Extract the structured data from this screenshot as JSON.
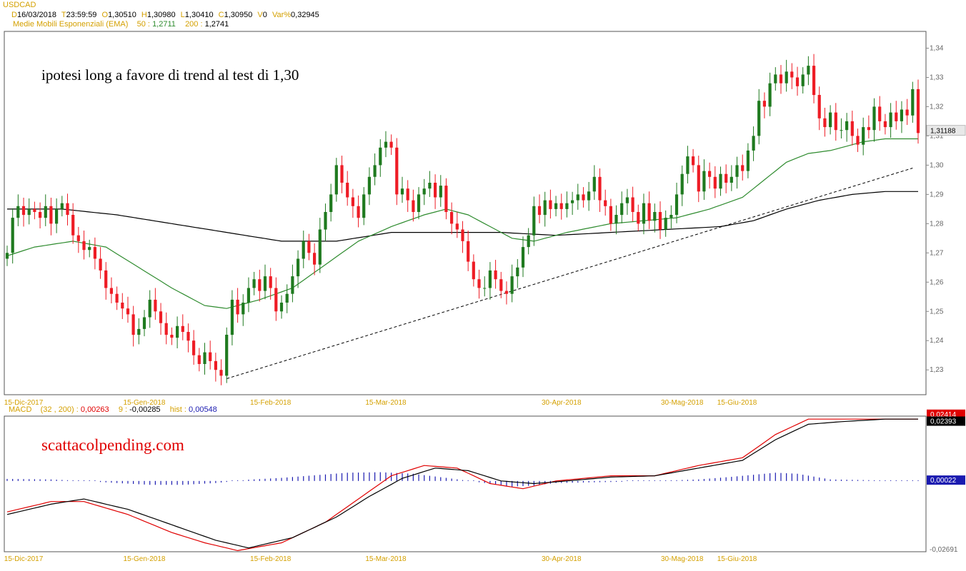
{
  "header": {
    "symbol": "USDCAD",
    "date_key": "D",
    "date": "16/03/2018",
    "time_key": "T",
    "time": "23:59:59",
    "open_key": "O",
    "open": "1,30510",
    "high_key": "H",
    "high": "1,30980",
    "low_key": "L",
    "low": "1,30410",
    "close_key": "C",
    "close": "1,30950",
    "vol_key": "V",
    "vol": "0",
    "var_key": "Var%",
    "var": "0,32945",
    "ema_label": "Medie Mobili Esponenziali (EMA)",
    "ema50_key": "50 :",
    "ema50": "1,2711",
    "ema200_key": "200 :",
    "ema200": "1,2741"
  },
  "macd_header": {
    "label": "MACD",
    "params": "(32 , 200) :",
    "macd_value": "0,00263",
    "signal_key": "9 :",
    "signal_value": "-0,00285",
    "hist_key": "hist :",
    "hist_value": "0,00548"
  },
  "annotations": {
    "main": "ipotesi long a favore di trend al test di 1,30",
    "site": "scattacolpending.com"
  },
  "colors": {
    "up": "#1f7a1f",
    "down": "#ee1c25",
    "ema50": "#2e8b2e",
    "ema200": "#000000",
    "macd": "#000000",
    "signal": "#e00000",
    "hist": "#1a1ab0",
    "axis_label": "#d4a000"
  },
  "chart_data": [
    {
      "type": "candlestick",
      "title": "USDCAD",
      "ylim": [
        1.222,
        1.345
      ],
      "yticks": [
        "1,23",
        "1,24",
        "1,25",
        "1,26",
        "1,27",
        "1,28",
        "1,29",
        "1,30",
        "1,31",
        "1,32",
        "1,33",
        "1,34"
      ],
      "ytick_values": [
        1.23,
        1.24,
        1.25,
        1.26,
        1.27,
        1.28,
        1.29,
        1.3,
        1.31,
        1.32,
        1.33,
        1.34
      ],
      "current_price": "1,31188",
      "current_price_value": 1.3119,
      "xticks": [
        {
          "label": "15-Dic-2017",
          "bar": 3
        },
        {
          "label": "15-Gen-2018",
          "bar": 25
        },
        {
          "label": "15-Feb-2018",
          "bar": 48
        },
        {
          "label": "15-Mar-2018",
          "bar": 69
        },
        {
          "label": "30-Apr-2018",
          "bar": 101
        },
        {
          "label": "30-Mag-2018",
          "bar": 123
        },
        {
          "label": "15-Giu-2018",
          "bar": 133
        }
      ],
      "closes": [
        1.27,
        1.282,
        1.286,
        1.283,
        1.285,
        1.284,
        1.282,
        1.286,
        1.28,
        1.285,
        1.287,
        1.283,
        1.276,
        1.274,
        1.271,
        1.272,
        1.268,
        1.264,
        1.258,
        1.256,
        1.253,
        1.251,
        1.249,
        1.242,
        1.244,
        1.248,
        1.254,
        1.25,
        1.246,
        1.242,
        1.241,
        1.245,
        1.243,
        1.24,
        1.235,
        1.232,
        1.236,
        1.233,
        1.23,
        1.228,
        1.242,
        1.254,
        1.249,
        1.253,
        1.258,
        1.261,
        1.257,
        1.262,
        1.258,
        1.25,
        1.253,
        1.256,
        1.262,
        1.268,
        1.274,
        1.27,
        1.266,
        1.278,
        1.284,
        1.29,
        1.3,
        1.294,
        1.289,
        1.286,
        1.282,
        1.29,
        1.296,
        1.3,
        1.306,
        1.308,
        1.306,
        1.29,
        1.292,
        1.288,
        1.284,
        1.29,
        1.292,
        1.294,
        1.289,
        1.293,
        1.284,
        1.28,
        1.278,
        1.274,
        1.267,
        1.261,
        1.258,
        1.258,
        1.264,
        1.261,
        1.257,
        1.256,
        1.262,
        1.265,
        1.272,
        1.276,
        1.286,
        1.283,
        1.288,
        1.285,
        1.287,
        1.285,
        1.287,
        1.288,
        1.29,
        1.288,
        1.291,
        1.296,
        1.288,
        1.286,
        1.28,
        1.283,
        1.287,
        1.289,
        1.284,
        1.28,
        1.287,
        1.281,
        1.284,
        1.278,
        1.282,
        1.283,
        1.29,
        1.297,
        1.303,
        1.3,
        1.291,
        1.298,
        1.296,
        1.292,
        1.297,
        1.294,
        1.296,
        1.3,
        1.298,
        1.305,
        1.31,
        1.322,
        1.32,
        1.328,
        1.331,
        1.328,
        1.332,
        1.33,
        1.327,
        1.331,
        1.334,
        1.324,
        1.316,
        1.313,
        1.318,
        1.312,
        1.312,
        1.315,
        1.31,
        1.307,
        1.313,
        1.312,
        1.32,
        1.315,
        1.313,
        1.318,
        1.315,
        1.319,
        1.317,
        1.326,
        1.311
      ],
      "ema50_anchors": [
        [
          0,
          1.269
        ],
        [
          5,
          1.272
        ],
        [
          12,
          1.274
        ],
        [
          18,
          1.272
        ],
        [
          24,
          1.265
        ],
        [
          30,
          1.258
        ],
        [
          36,
          1.252
        ],
        [
          40,
          1.251
        ],
        [
          46,
          1.254
        ],
        [
          52,
          1.258
        ],
        [
          58,
          1.266
        ],
        [
          64,
          1.274
        ],
        [
          70,
          1.279
        ],
        [
          76,
          1.283
        ],
        [
          80,
          1.285
        ],
        [
          84,
          1.283
        ],
        [
          88,
          1.279
        ],
        [
          92,
          1.275
        ],
        [
          96,
          1.274
        ],
        [
          102,
          1.277
        ],
        [
          110,
          1.28
        ],
        [
          116,
          1.281
        ],
        [
          122,
          1.282
        ],
        [
          128,
          1.285
        ],
        [
          134,
          1.289
        ],
        [
          138,
          1.295
        ],
        [
          142,
          1.301
        ],
        [
          146,
          1.304
        ],
        [
          150,
          1.305
        ],
        [
          156,
          1.308
        ],
        [
          160,
          1.309
        ]
      ],
      "ema200_anchors": [
        [
          0,
          1.285
        ],
        [
          10,
          1.285
        ],
        [
          20,
          1.283
        ],
        [
          30,
          1.28
        ],
        [
          40,
          1.277
        ],
        [
          50,
          1.274
        ],
        [
          60,
          1.274
        ],
        [
          70,
          1.277
        ],
        [
          80,
          1.277
        ],
        [
          90,
          1.277
        ],
        [
          100,
          1.276
        ],
        [
          110,
          1.277
        ],
        [
          120,
          1.278
        ],
        [
          130,
          1.279
        ],
        [
          136,
          1.281
        ],
        [
          142,
          1.285
        ],
        [
          148,
          1.288
        ],
        [
          154,
          1.29
        ],
        [
          160,
          1.291
        ]
      ],
      "trendline": [
        [
          40,
          1.227
        ],
        [
          165,
          1.299
        ]
      ]
    },
    {
      "type": "line",
      "title": "MACD",
      "ylim": [
        -0.0269,
        0.0246
      ],
      "yticks": [
        "-0,02691"
      ],
      "ytick_values": [
        -0.02691
      ],
      "value_tags": [
        {
          "label": "0,02414",
          "value": 0.0241,
          "color": "#e00000"
        },
        {
          "label": "0,02393",
          "value": 0.0239,
          "color": "#000000"
        },
        {
          "label": "0,00022",
          "value": 0.0002,
          "color": "#1a1ab0"
        }
      ],
      "macd_anchors": [
        [
          0,
          -0.013
        ],
        [
          8,
          -0.009
        ],
        [
          14,
          -0.007
        ],
        [
          22,
          -0.011
        ],
        [
          30,
          -0.017
        ],
        [
          38,
          -0.023
        ],
        [
          44,
          -0.026
        ],
        [
          52,
          -0.022
        ],
        [
          60,
          -0.014
        ],
        [
          66,
          -0.006
        ],
        [
          72,
          0.001
        ],
        [
          78,
          0.005
        ],
        [
          84,
          0.004
        ],
        [
          90,
          0.0
        ],
        [
          96,
          -0.001
        ],
        [
          102,
          0.0
        ],
        [
          110,
          0.0015
        ],
        [
          118,
          0.002
        ],
        [
          126,
          0.005
        ],
        [
          134,
          0.008
        ],
        [
          140,
          0.016
        ],
        [
          146,
          0.022
        ],
        [
          152,
          0.023
        ],
        [
          160,
          0.024
        ]
      ],
      "signal_anchors": [
        [
          0,
          -0.012
        ],
        [
          8,
          -0.008
        ],
        [
          14,
          -0.008
        ],
        [
          22,
          -0.013
        ],
        [
          30,
          -0.02
        ],
        [
          36,
          -0.024
        ],
        [
          42,
          -0.027
        ],
        [
          50,
          -0.024
        ],
        [
          58,
          -0.016
        ],
        [
          64,
          -0.007
        ],
        [
          70,
          0.002
        ],
        [
          76,
          0.006
        ],
        [
          82,
          0.005
        ],
        [
          88,
          -0.001
        ],
        [
          94,
          -0.003
        ],
        [
          100,
          0.0
        ],
        [
          110,
          0.002
        ],
        [
          118,
          0.002
        ],
        [
          126,
          0.006
        ],
        [
          134,
          0.009
        ],
        [
          140,
          0.018
        ],
        [
          146,
          0.024
        ],
        [
          152,
          0.024
        ],
        [
          160,
          0.024
        ]
      ],
      "hist_anchors": [
        [
          0,
          0.0008
        ],
        [
          8,
          0.0006
        ],
        [
          14,
          0.0
        ],
        [
          20,
          -0.0008
        ],
        [
          26,
          -0.0015
        ],
        [
          32,
          -0.0015
        ],
        [
          38,
          -0.0008
        ],
        [
          44,
          0.0005
        ],
        [
          50,
          0.0012
        ],
        [
          56,
          0.0022
        ],
        [
          62,
          0.0032
        ],
        [
          68,
          0.0034
        ],
        [
          74,
          0.0028
        ],
        [
          80,
          0.0012
        ],
        [
          86,
          -0.0005
        ],
        [
          92,
          -0.0022
        ],
        [
          96,
          -0.0018
        ],
        [
          100,
          -0.0008
        ],
        [
          110,
          -0.0004
        ],
        [
          118,
          0.0
        ],
        [
          126,
          0.0006
        ],
        [
          132,
          0.0016
        ],
        [
          140,
          0.0032
        ],
        [
          144,
          0.0028
        ],
        [
          150,
          0.0006
        ],
        [
          160,
          0.0002
        ]
      ]
    }
  ]
}
